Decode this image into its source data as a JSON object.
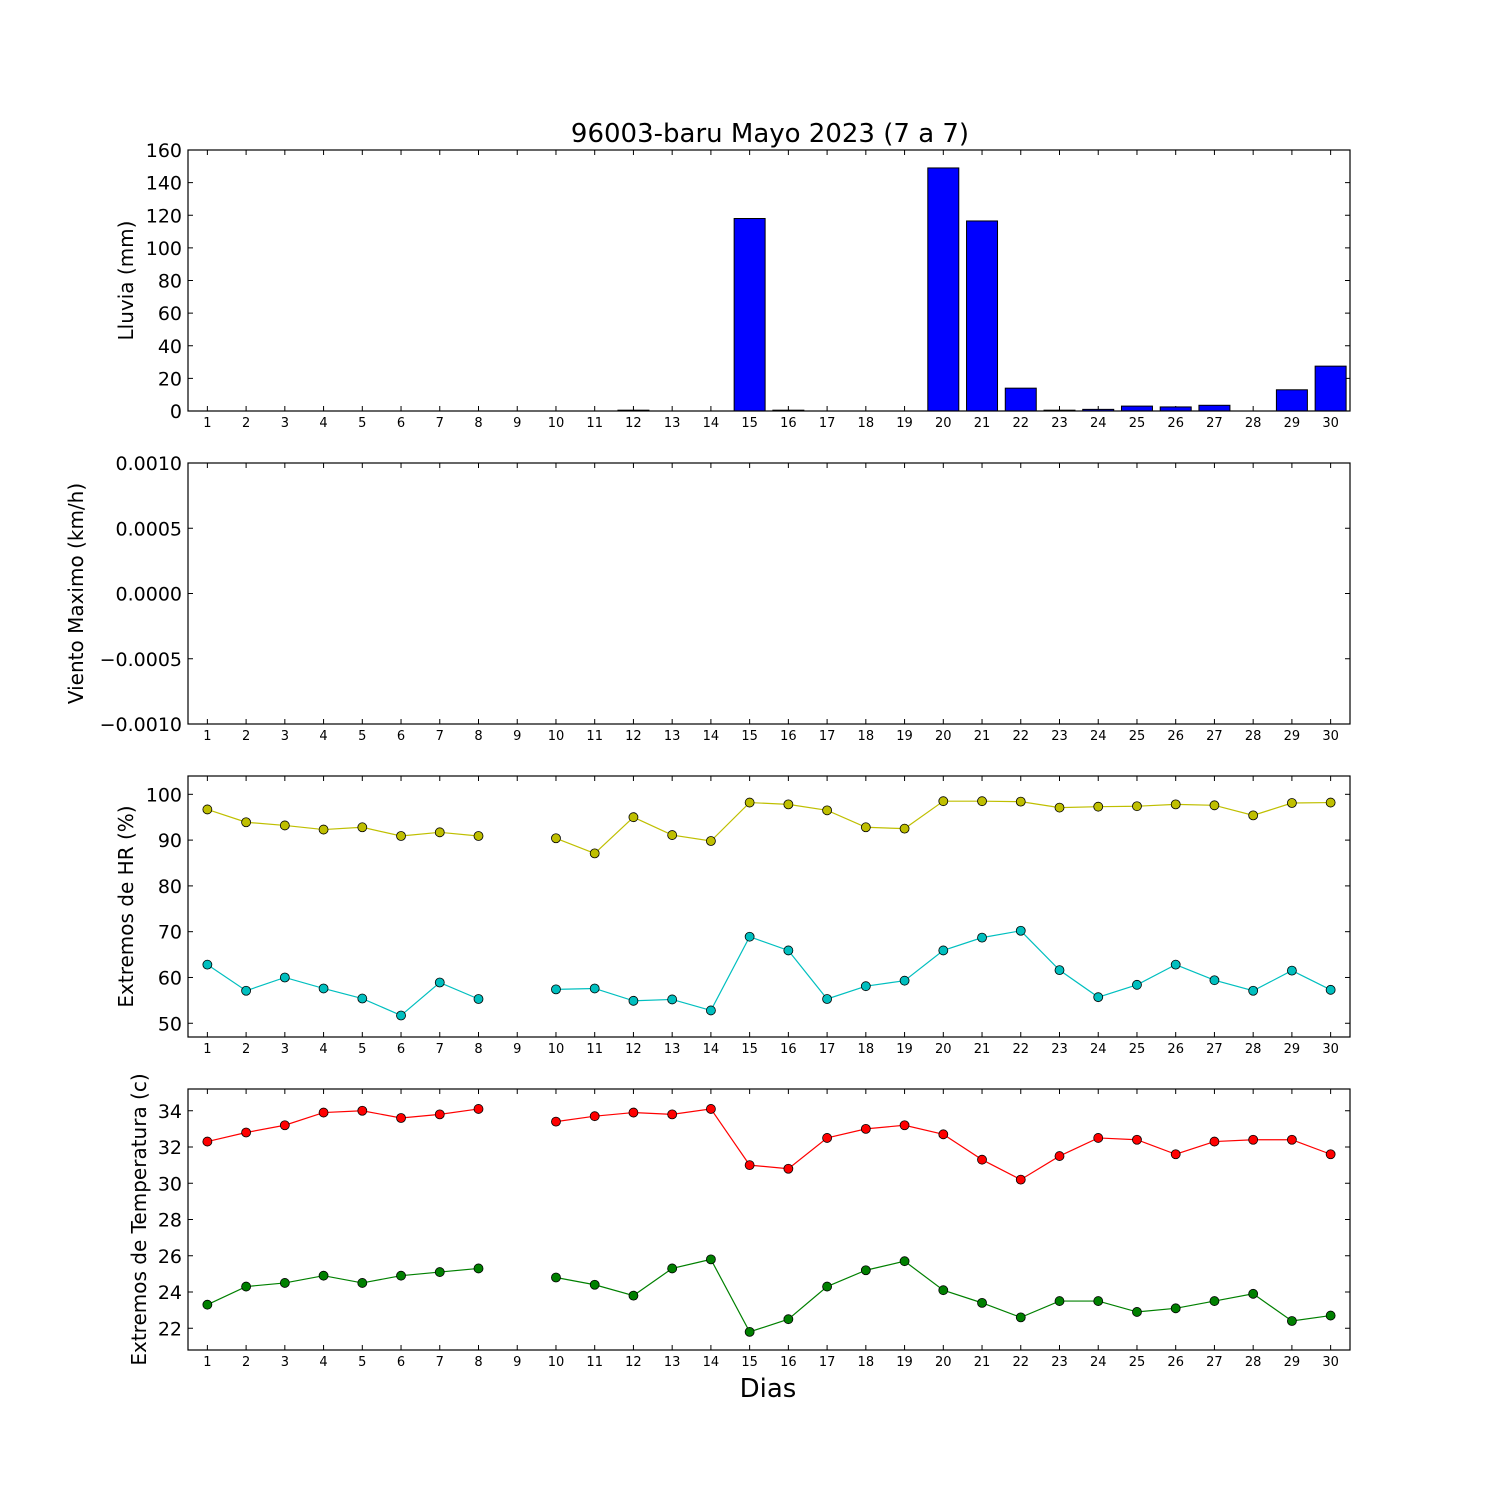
{
  "chart_data": [
    {
      "type": "bar",
      "title": "96003-baru Mayo 2023  (7 a 7)",
      "xlabel": "",
      "ylabel": "Lluvia (mm)",
      "x": [
        1,
        2,
        3,
        4,
        5,
        6,
        7,
        8,
        9,
        10,
        11,
        12,
        13,
        14,
        15,
        16,
        17,
        18,
        19,
        20,
        21,
        22,
        23,
        24,
        25,
        26,
        27,
        28,
        29,
        30
      ],
      "values": [
        0,
        0,
        0,
        0,
        0,
        0,
        0,
        0,
        0,
        0,
        0,
        0.5,
        0,
        0,
        118,
        0.5,
        0,
        0,
        0,
        149,
        116.5,
        14,
        0.5,
        1,
        3,
        2.5,
        3.5,
        0,
        13,
        27.5
      ],
      "ylim": [
        0,
        160
      ],
      "yticks": [
        0,
        20,
        40,
        60,
        80,
        100,
        120,
        140,
        160
      ],
      "color": "#0000ff"
    },
    {
      "type": "line",
      "title": "",
      "xlabel": "",
      "ylabel": "Viento Maximo (km/h)",
      "x": [
        1,
        2,
        3,
        4,
        5,
        6,
        7,
        8,
        9,
        10,
        11,
        12,
        13,
        14,
        15,
        16,
        17,
        18,
        19,
        20,
        21,
        22,
        23,
        24,
        25,
        26,
        27,
        28,
        29,
        30
      ],
      "series": [],
      "ylim": [
        -0.001,
        0.001
      ],
      "yticks": [
        -0.001,
        -0.0005,
        0,
        0.0005,
        0.001
      ],
      "ytick_labels": [
        "−0.0010",
        "−0.0005",
        "0.0000",
        "0.0005",
        "0.0010"
      ]
    },
    {
      "type": "line",
      "title": "",
      "xlabel": "",
      "ylabel": "Extremos de HR (%)",
      "x": [
        1,
        2,
        3,
        4,
        5,
        6,
        7,
        8,
        9,
        10,
        11,
        12,
        13,
        14,
        15,
        16,
        17,
        18,
        19,
        20,
        21,
        22,
        23,
        24,
        25,
        26,
        27,
        28,
        29,
        30
      ],
      "series": [
        {
          "color": "#bfbf00",
          "values": [
            96.7,
            93.9,
            93.2,
            92.3,
            92.8,
            90.9,
            91.7,
            90.9,
            null,
            90.4,
            87.1,
            95.0,
            91.1,
            89.8,
            98.2,
            97.8,
            96.5,
            92.8,
            92.5,
            98.5,
            98.5,
            98.4,
            97.1,
            97.3,
            97.4,
            97.8,
            97.6,
            95.4,
            98.1,
            98.2
          ]
        },
        {
          "color": "#00bfbf",
          "values": [
            62.8,
            57.1,
            60.0,
            57.6,
            55.4,
            51.7,
            58.9,
            55.3,
            null,
            57.4,
            57.6,
            54.9,
            55.2,
            52.8,
            68.9,
            65.9,
            55.3,
            58.1,
            59.3,
            65.9,
            68.7,
            70.2,
            61.6,
            55.7,
            58.4,
            62.8,
            59.4,
            57.1,
            61.5,
            57.3
          ]
        }
      ],
      "ylim": [
        47,
        104
      ],
      "yticks": [
        50,
        60,
        70,
        80,
        90,
        100
      ]
    },
    {
      "type": "line",
      "title": "",
      "xlabel": "Dias",
      "ylabel": "Extremos de Temperatura (c)",
      "x": [
        1,
        2,
        3,
        4,
        5,
        6,
        7,
        8,
        9,
        10,
        11,
        12,
        13,
        14,
        15,
        16,
        17,
        18,
        19,
        20,
        21,
        22,
        23,
        24,
        25,
        26,
        27,
        28,
        29,
        30
      ],
      "series": [
        {
          "color": "#ff0000",
          "values": [
            32.3,
            32.8,
            33.2,
            33.9,
            34.0,
            33.6,
            33.8,
            34.1,
            null,
            33.4,
            33.7,
            33.9,
            33.8,
            34.1,
            31.0,
            30.8,
            32.5,
            33.0,
            33.2,
            32.7,
            31.3,
            30.2,
            31.5,
            32.5,
            32.4,
            31.6,
            32.3,
            32.4,
            32.4,
            31.6
          ]
        },
        {
          "color": "#008000",
          "values": [
            23.3,
            24.3,
            24.5,
            24.9,
            24.5,
            24.9,
            25.1,
            25.3,
            null,
            24.8,
            24.4,
            23.8,
            25.3,
            25.8,
            21.8,
            22.5,
            24.3,
            25.2,
            25.7,
            24.1,
            23.4,
            22.6,
            23.5,
            23.5,
            22.9,
            23.1,
            23.5,
            23.9,
            22.4,
            22.7
          ]
        }
      ],
      "ylim": [
        20.8,
        35.2
      ],
      "yticks": [
        22,
        24,
        26,
        28,
        30,
        32,
        34
      ]
    }
  ]
}
